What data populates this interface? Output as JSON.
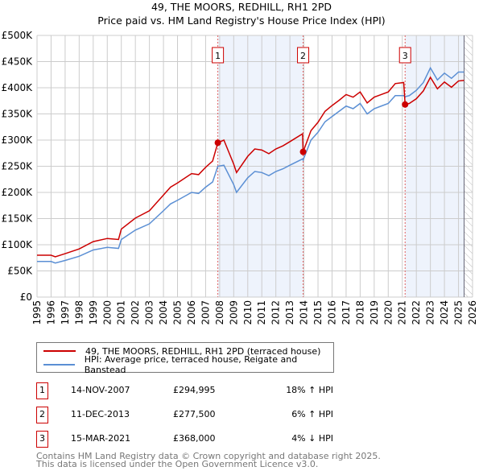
{
  "chart_data": {
    "type": "line",
    "title": "49, THE MOORS, REDHILL, RH1 2PD",
    "subtitle": "Price paid vs. HM Land Registry's House Price Index (HPI)",
    "xlim": [
      1995,
      2026
    ],
    "ylim": [
      0,
      500
    ],
    "x_ticks": [
      "1995",
      "1996",
      "1997",
      "1998",
      "1999",
      "2000",
      "2001",
      "2002",
      "2003",
      "2004",
      "2005",
      "2006",
      "2007",
      "2008",
      "2009",
      "2010",
      "2011",
      "2012",
      "2013",
      "2014",
      "2015",
      "2016",
      "2017",
      "2018",
      "2019",
      "2020",
      "2021",
      "2022",
      "2023",
      "2024",
      "2025",
      "2026"
    ],
    "y_ticks": [
      "£0",
      "£50K",
      "£100K",
      "£150K",
      "£200K",
      "£250K",
      "£300K",
      "£350K",
      "£400K",
      "£450K",
      "£500K"
    ],
    "grid": true,
    "x": [
      1995,
      1996,
      1996.3,
      1997,
      1998,
      1999,
      2000,
      2000.8,
      2001,
      2002,
      2003,
      2004,
      2004.5,
      2005,
      2006,
      2006.5,
      2007,
      2007.5,
      2007.87,
      2008.3,
      2009,
      2009.2,
      2010,
      2010.5,
      2011,
      2011.5,
      2012,
      2012.5,
      2013,
      2013.9,
      2013.94,
      2014.5,
      2015,
      2015.5,
      2016,
      2016.5,
      2017,
      2017.5,
      2018,
      2018.5,
      2019,
      2019.5,
      2020,
      2020.5,
      2021.1,
      2021.2,
      2021.5,
      2022,
      2022.5,
      2023,
      2023.5,
      2024,
      2024.5,
      2025,
      2025.4
    ],
    "series": [
      {
        "name": "49, THE MOORS, REDHILL, RH1 2PD (terraced house)",
        "color": "#cc0000",
        "values": [
          80,
          80,
          77,
          83,
          92,
          106,
          112,
          110,
          130,
          151,
          165,
          195,
          210,
          218,
          236,
          234,
          248,
          260,
          295,
          300,
          254,
          238,
          269,
          283,
          281,
          274,
          283,
          289,
          297,
          312,
          277.5,
          318,
          334,
          355,
          366,
          376,
          387,
          382,
          392,
          371,
          382,
          387,
          392,
          408,
          410,
          368,
          370,
          379,
          394,
          420,
          398,
          411,
          401,
          413,
          414
        ]
      },
      {
        "name": "HPI: Average price, terraced house, Reigate and Banstead",
        "color": "#5b8fd4",
        "values": [
          68,
          68,
          65,
          70,
          78,
          90,
          95,
          93,
          110,
          128,
          140,
          165,
          178,
          185,
          200,
          198,
          210,
          220,
          250,
          252,
          215,
          200,
          228,
          240,
          238,
          232,
          240,
          245,
          252,
          264,
          262,
          300,
          315,
          335,
          345,
          355,
          365,
          360,
          370,
          350,
          360,
          365,
          370,
          385,
          385,
          383,
          385,
          395,
          410,
          438,
          415,
          428,
          418,
          430,
          430
        ]
      }
    ],
    "sales": [
      {
        "label": "1",
        "x": 2007.87,
        "value": 294.995,
        "date": "14-NOV-2007",
        "price": "£294,995",
        "hpi": "18% ↑ HPI"
      },
      {
        "label": "2",
        "x": 2013.94,
        "value": 277.5,
        "date": "11-DEC-2013",
        "price": "£277,500",
        "hpi": "6% ↑ HPI"
      },
      {
        "label": "3",
        "x": 2021.2,
        "value": 368,
        "date": "15-MAR-2021",
        "price": "£368,000",
        "hpi": "4% ↓ HPI"
      }
    ],
    "shaded": [
      [
        2007.87,
        2013.94
      ],
      [
        2021.2,
        2025.4
      ]
    ],
    "hatched_from": 2025.4
  },
  "footer": [
    "Contains HM Land Registry data © Crown copyright and database right 2025.",
    "This data is licensed under the Open Government Licence v3.0."
  ]
}
